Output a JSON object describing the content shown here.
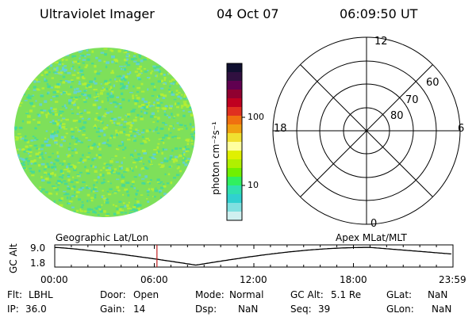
{
  "header": {
    "title": "Ultraviolet Imager",
    "date": "04 Oct 07",
    "time": "06:09:50 UT"
  },
  "colorbar": {
    "label": "photon cm⁻²s⁻¹",
    "ticks": [
      "100",
      "10"
    ],
    "colors": [
      "#101030",
      "#301040",
      "#600050",
      "#900030",
      "#c00020",
      "#e03020",
      "#f07010",
      "#f0a010",
      "#f0e030",
      "#ffffa0",
      "#e0f000",
      "#b0f000",
      "#70f000",
      "#30f060",
      "#30e0b0",
      "#30d0d0",
      "#80e0e0",
      "#d0f0f0"
    ]
  },
  "polar": {
    "mlt_labels": {
      "top": "12",
      "left": "18",
      "right": "6",
      "bottom": "0"
    },
    "lat_labels": [
      "60",
      "70",
      "80"
    ]
  },
  "timeline": {
    "ylabel": "GC Alt",
    "ymax": "9.0",
    "ymin": "1.8",
    "left_label": "Geographic Lat/Lon",
    "right_label": "Apex MLat/MLT",
    "xticks": [
      "00:00",
      "06:00",
      "12:00",
      "18:00",
      "23:59"
    ],
    "current_time_hours": 6.16
  },
  "info": {
    "flt_label": "Flt:",
    "flt_value": "LBHL",
    "ip_label": "IP:",
    "ip_value": "36.0",
    "door_label": "Door:",
    "door_value": "Open",
    "gain_label": "Gain:",
    "gain_value": "14",
    "mode_label": "Mode:",
    "mode_value": "Normal",
    "dsp_label": "Dsp:",
    "dsp_value": "NaN",
    "gcalt_label": "GC Alt:",
    "gcalt_value": "5.1 Re",
    "seq_label": "Seq:",
    "seq_value": "39",
    "glat_label": "GLat:",
    "glat_value": "NaN",
    "glon_label": "GLon:",
    "glon_value": "NaN"
  },
  "style": {
    "earth_base": "#7ee05a",
    "earth_speckle_a": "#b8ee30",
    "earth_speckle_b": "#40d8a0",
    "earth_speckle_c": "#60d0e0",
    "marker_color": "#c02020"
  }
}
